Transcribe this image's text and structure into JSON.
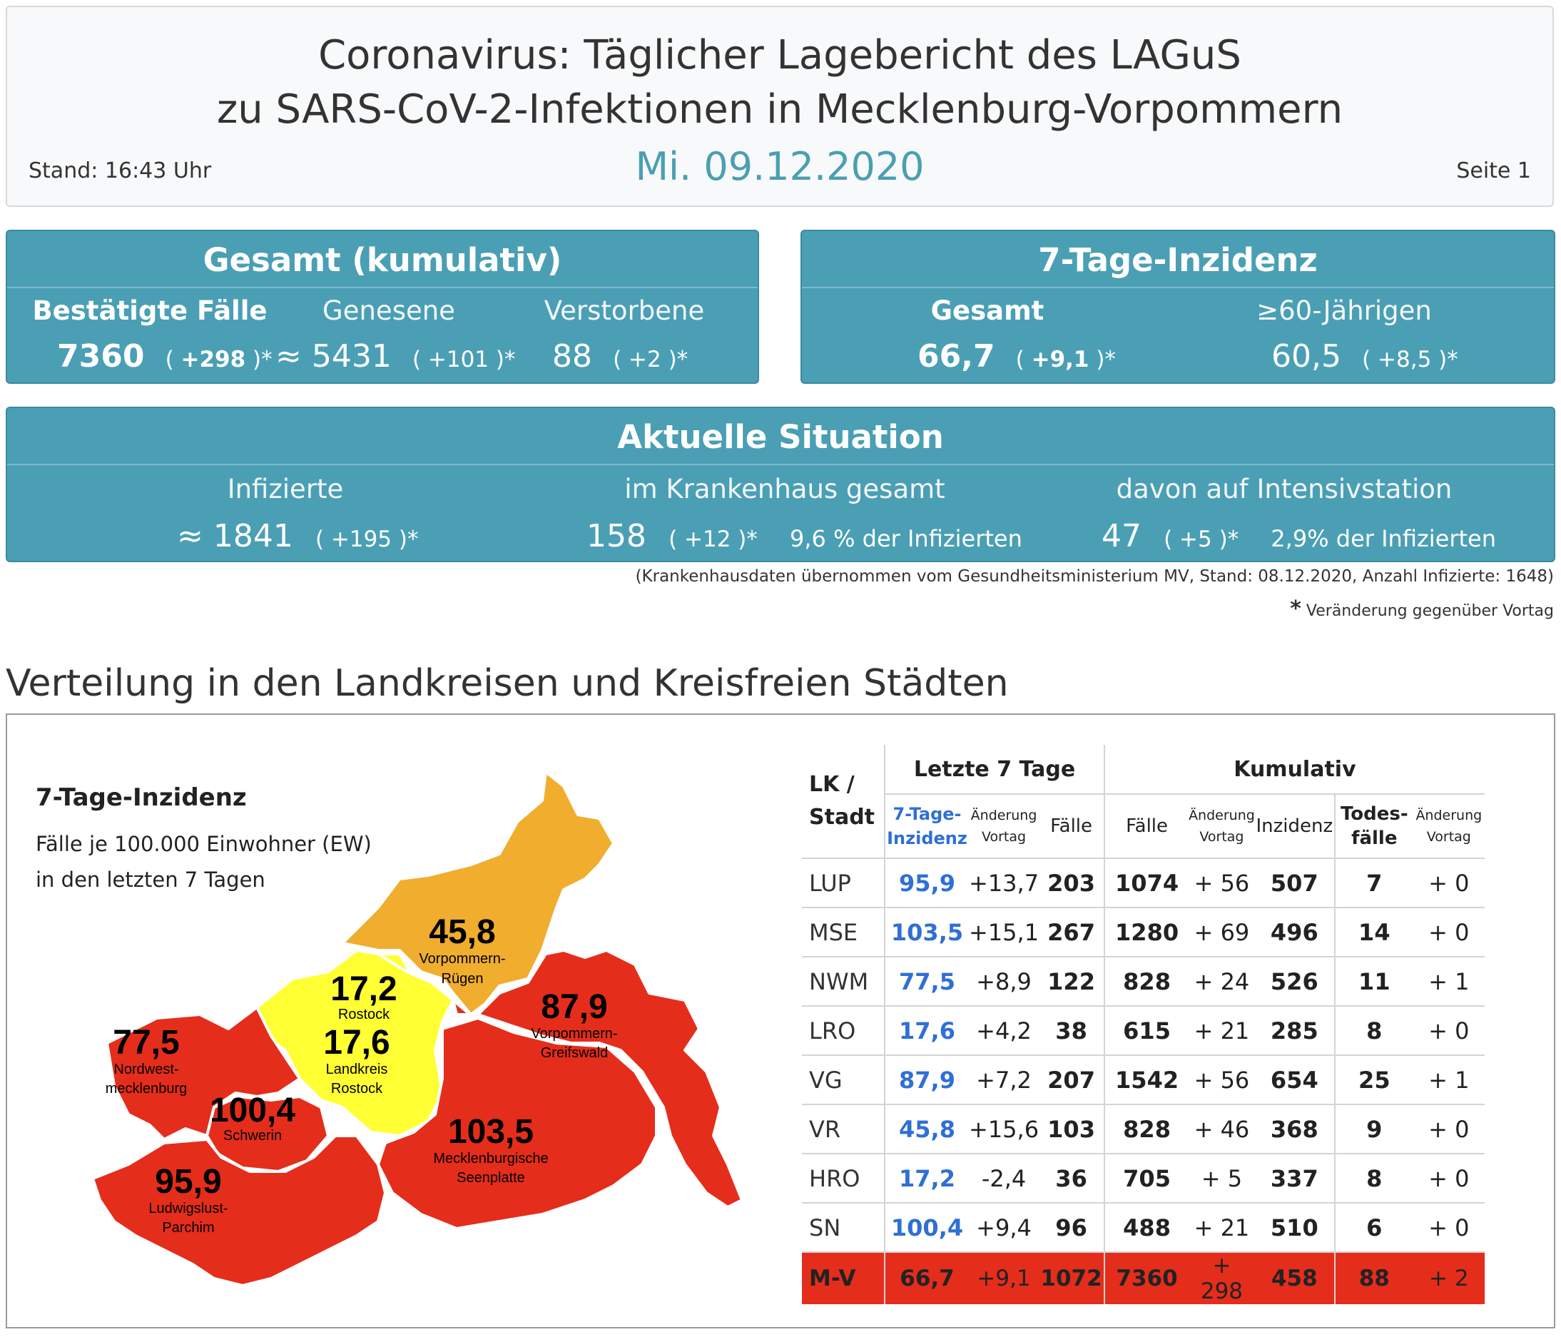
{
  "header": {
    "title_line1": "Coronavirus: Täglicher Lagebericht des LAGuS",
    "title_line2": "zu SARS-CoV-2-Infektionen in Mecklenburg-Vorpommern",
    "date": "Mi. 09.12.2020",
    "stand": "Stand: 16:43 Uhr",
    "page": "Seite 1"
  },
  "gesamt": {
    "title": "Gesamt (kumulativ)",
    "confirmed": {
      "label": "Bestätigte Fälle",
      "value": "7360",
      "open": "( ",
      "change": "+298",
      "close": " )*"
    },
    "recovered": {
      "label": "Genesene",
      "value": "≈ 5431",
      "change": "( +101 )*"
    },
    "deceased": {
      "label": "Verstorbene",
      "value": "88",
      "change": "( +2 )*"
    }
  },
  "inzidenz": {
    "title": "7-Tage-Inzidenz",
    "total": {
      "label": "Gesamt",
      "value": "66,7",
      "open": "( ",
      "change": "+9,1",
      "close": " )*"
    },
    "over60": {
      "label": "≥60-Jährigen",
      "value": "60,5",
      "change": "( +8,5 )*"
    }
  },
  "aktuell": {
    "title": "Aktuelle Situation",
    "infected": {
      "label": "Infizierte",
      "value": "≈ 1841",
      "change": "( +195 )*"
    },
    "hospital": {
      "label": "im Krankenhaus gesamt",
      "value": "158",
      "change": "( +12 )*",
      "pct": "9,6 % der Infizierten"
    },
    "icu": {
      "label": "davon auf Intensivstation",
      "value": "47",
      "change": "( +5 )*",
      "pct": "2,9% der Infizierten"
    }
  },
  "notes": {
    "hospital_source": "(Krankenhausdaten übernommen vom Gesundheitsministerium MV, Stand: 08.12.2020, Anzahl Infizierte: 1648)",
    "star": "*",
    "change_note": "Veränderung gegenüber Vortag"
  },
  "section_title": "Verteilung in den Landkreisen und Kreisfreien Städten",
  "map": {
    "title": "7-Tage-Inzidenz",
    "subtitle_line1": "Fälle je 100.000 Einwohner (EW)",
    "subtitle_line2": "in den letzten 7 Tagen",
    "colors": {
      "red": "#e52d1b",
      "orange": "#f0ad2e",
      "yellow": "#ffff33"
    },
    "regions": [
      {
        "id": "vr",
        "value": "45,8",
        "name1": "Vorpommern-",
        "name2": "Rügen",
        "color": "orange"
      },
      {
        "id": "hro",
        "value": "17,2",
        "name1": "Rostock",
        "name2": "",
        "color": "yellow"
      },
      {
        "id": "lro",
        "value": "17,6",
        "name1": "Landkreis",
        "name2": "Rostock",
        "color": "yellow"
      },
      {
        "id": "vg",
        "value": "87,9",
        "name1": "Vorpommern-",
        "name2": "Greifswald",
        "color": "red"
      },
      {
        "id": "nwm",
        "value": "77,5",
        "name1": "Nordwest-",
        "name2": "mecklenburg",
        "color": "red"
      },
      {
        "id": "sn",
        "value": "100,4",
        "name1": "Schwerin",
        "name2": "",
        "color": "red"
      },
      {
        "id": "mse",
        "value": "103,5",
        "name1": "Mecklenburgische",
        "name2": "Seenplatte",
        "color": "red"
      },
      {
        "id": "lup",
        "value": "95,9",
        "name1": "Ludwigslust-",
        "name2": "Parchim",
        "color": "red"
      }
    ]
  },
  "table": {
    "group_7": "Letzte 7 Tage",
    "group_kum": "Kumulativ",
    "col_lk": "LK /",
    "col_stadt": "Stadt",
    "col_inz1": "7-Tage-",
    "col_inz2": "Inzidenz",
    "col_aend1": "Änderung",
    "col_aend2": "Vortag",
    "col_faelle": "Fälle",
    "col_inzidenz": "Inzidenz",
    "col_todes1": "Todes-",
    "col_todes2": "fälle",
    "rows": [
      {
        "lk": "LUP",
        "inz": "95,9",
        "inz_chg": "+13,7",
        "f7": "203",
        "faelle": "1074",
        "faelle_chg": "+ 56",
        "inzidenz": "507",
        "todes": "7",
        "todes_chg": "+ 0"
      },
      {
        "lk": "MSE",
        "inz": "103,5",
        "inz_chg": "+15,1",
        "f7": "267",
        "faelle": "1280",
        "faelle_chg": "+ 69",
        "inzidenz": "496",
        "todes": "14",
        "todes_chg": "+ 0"
      },
      {
        "lk": "NWM",
        "inz": "77,5",
        "inz_chg": "+8,9",
        "f7": "122",
        "faelle": "828",
        "faelle_chg": "+ 24",
        "inzidenz": "526",
        "todes": "11",
        "todes_chg": "+ 1"
      },
      {
        "lk": "LRO",
        "inz": "17,6",
        "inz_chg": "+4,2",
        "f7": "38",
        "faelle": "615",
        "faelle_chg": "+ 21",
        "inzidenz": "285",
        "todes": "8",
        "todes_chg": "+ 0"
      },
      {
        "lk": "VG",
        "inz": "87,9",
        "inz_chg": "+7,2",
        "f7": "207",
        "faelle": "1542",
        "faelle_chg": "+ 56",
        "inzidenz": "654",
        "todes": "25",
        "todes_chg": "+ 1"
      },
      {
        "lk": "VR",
        "inz": "45,8",
        "inz_chg": "+15,6",
        "f7": "103",
        "faelle": "828",
        "faelle_chg": "+ 46",
        "inzidenz": "368",
        "todes": "9",
        "todes_chg": "+ 0"
      },
      {
        "lk": "HRO",
        "inz": "17,2",
        "inz_chg": "-2,4",
        "f7": "36",
        "faelle": "705",
        "faelle_chg": "+ 5",
        "inzidenz": "337",
        "todes": "8",
        "todes_chg": "+ 0"
      },
      {
        "lk": "SN",
        "inz": "100,4",
        "inz_chg": "+9,4",
        "f7": "96",
        "faelle": "488",
        "faelle_chg": "+ 21",
        "inzidenz": "510",
        "todes": "6",
        "todes_chg": "+ 0"
      }
    ],
    "total": {
      "lk": "M-V",
      "inz": "66,7",
      "inz_chg": "+9,1",
      "f7": "1072",
      "faelle": "7360",
      "faelle_chg": "+ 298",
      "inzidenz": "458",
      "todes": "88",
      "todes_chg": "+ 2"
    }
  }
}
